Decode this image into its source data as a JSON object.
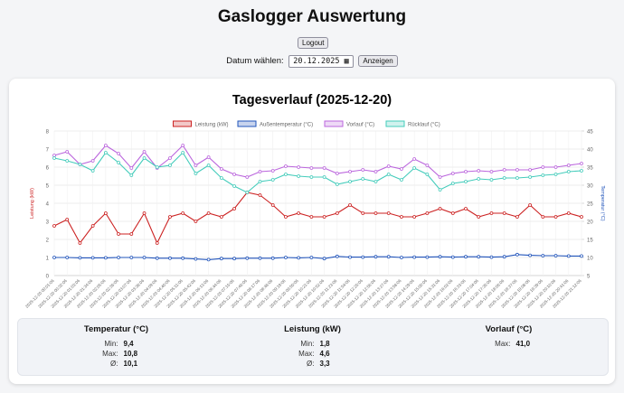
{
  "header": {
    "title": "Gaslogger Auswertung",
    "logout": "Logout",
    "date_label": "Datum wählen:",
    "date_value": "20.12.2025",
    "show_button": "Anzeigen"
  },
  "chart_data": {
    "type": "line",
    "title": "Tagesverlauf (2025-12-20)",
    "y_label": "Leistung (kW)",
    "y2_label": "Temperatur (°C)",
    "categories": [
      "2025-12-20 00:01:06",
      "2025-12-20 00:32:06",
      "2025-12-20 01:03:06",
      "2025-12-20 01:34:06",
      "2025-12-20 02:05:06",
      "2025-12-20 02:36:06",
      "2025-12-20 03:07:06",
      "2025-12-20 03:38:06",
      "2025-12-20 04:09:06",
      "2025-12-20 04:40:06",
      "2025-12-20 05:11:06",
      "2025-12-20 05:42:06",
      "2025-12-20 06:13:06",
      "2025-12-20 06:44:06",
      "2025-12-20 07:15:06",
      "2025-12-20 07:46:06",
      "2025-12-20 08:17:06",
      "2025-12-20 08:48:06",
      "2025-12-20 09:19:06",
      "2025-12-20 09:50:06",
      "2025-12-20 10:21:06",
      "2025-12-20 10:52:06",
      "2025-12-20 11:23:06",
      "2025-12-20 11:54:06",
      "2025-12-20 12:25:06",
      "2025-12-20 12:56:06",
      "2025-12-20 13:27:06",
      "2025-12-20 13:58:06",
      "2025-12-20 14:29:06",
      "2025-12-20 15:00:06",
      "2025-12-20 15:31:06",
      "2025-12-20 16:02:06",
      "2025-12-20 16:33:06",
      "2025-12-20 17:04:06",
      "2025-12-20 17:35:06",
      "2025-12-20 18:06:06",
      "2025-12-20 18:37:06",
      "2025-12-20 19:08:06",
      "2025-12-20 19:39:06",
      "2025-12-20 20:10:06",
      "2025-12-20 20:41:06",
      "2025-12-20 21:12:06"
    ],
    "series": [
      {
        "name": "Leistung (kW)",
        "color": "#cc2222",
        "axis": "y",
        "values": [
          2.75,
          3.1,
          1.8,
          2.75,
          3.45,
          2.3,
          2.3,
          3.45,
          1.8,
          3.25,
          3.45,
          3.0,
          3.45,
          3.25,
          3.7,
          4.6,
          4.45,
          3.9,
          3.25,
          3.45,
          3.25,
          3.25,
          3.45,
          3.9,
          3.45,
          3.45,
          3.45,
          3.25,
          3.25,
          3.45,
          3.7,
          3.45,
          3.7,
          3.25,
          3.45,
          3.45,
          3.25,
          3.9,
          3.25,
          3.25,
          3.45,
          3.25
        ]
      },
      {
        "name": "Außentemperatur (°C)",
        "color": "#2255bb",
        "axis": "y2",
        "values": [
          10.0,
          10.0,
          9.9,
          9.9,
          9.9,
          10.0,
          10.0,
          10.0,
          9.8,
          9.8,
          9.8,
          9.6,
          9.4,
          9.7,
          9.7,
          9.8,
          9.8,
          9.8,
          10.0,
          9.9,
          10.0,
          9.7,
          10.3,
          10.1,
          10.1,
          10.2,
          10.2,
          10.0,
          10.1,
          10.1,
          10.2,
          10.1,
          10.2,
          10.2,
          10.1,
          10.2,
          10.8,
          10.6,
          10.5,
          10.5,
          10.4,
          10.4
        ]
      },
      {
        "name": "Vorlauf (°C)",
        "color": "#bb66dd",
        "axis": "y2",
        "values": [
          38.25,
          39.25,
          35.75,
          36.75,
          41.0,
          38.75,
          34.75,
          39.25,
          34.75,
          37.5,
          41.0,
          35.5,
          37.75,
          34.5,
          33.0,
          32.25,
          33.75,
          34.0,
          35.25,
          35.0,
          34.75,
          34.75,
          33.25,
          33.75,
          34.25,
          33.75,
          35.25,
          34.5,
          37.25,
          35.5,
          32.25,
          33.25,
          33.75,
          34.0,
          33.75,
          34.25,
          34.25,
          34.25,
          35.0,
          35.0,
          35.5,
          36.0
        ]
      },
      {
        "name": "Rücklauf (°C)",
        "color": "#44ccbb",
        "axis": "y2",
        "values": [
          37.5,
          36.75,
          35.75,
          34.0,
          39.0,
          36.25,
          32.75,
          37.5,
          35.0,
          35.5,
          39.0,
          33.25,
          35.5,
          32.0,
          29.75,
          28.0,
          31.0,
          31.5,
          33.0,
          32.5,
          32.25,
          32.25,
          30.25,
          31.0,
          31.75,
          31.0,
          33.0,
          31.5,
          34.75,
          33.0,
          28.75,
          30.5,
          31.0,
          31.75,
          31.5,
          32.0,
          32.0,
          32.25,
          32.75,
          33.0,
          33.75,
          34.0
        ]
      }
    ],
    "ylim": [
      0,
      8
    ],
    "yticks": [
      0,
      1,
      2,
      3,
      4,
      5,
      6,
      7,
      8
    ],
    "y2lim": [
      5,
      45
    ],
    "y2ticks": [
      5,
      10,
      15,
      20,
      25,
      30,
      35,
      40,
      45
    ],
    "grid": true,
    "legend": "top"
  },
  "stats": [
    {
      "title": "Temperatur (°C)",
      "rows": [
        [
          "Min:",
          "9,4"
        ],
        [
          "Max:",
          "10,8"
        ],
        [
          "Ø:",
          "10,1"
        ]
      ]
    },
    {
      "title": "Leistung (kW)",
      "rows": [
        [
          "Min:",
          "1,8"
        ],
        [
          "Max:",
          "4,6"
        ],
        [
          "Ø:",
          "3,3"
        ]
      ]
    },
    {
      "title": "Vorlauf (°C)",
      "rows": [
        [
          "Max:",
          "41,0"
        ]
      ]
    }
  ]
}
